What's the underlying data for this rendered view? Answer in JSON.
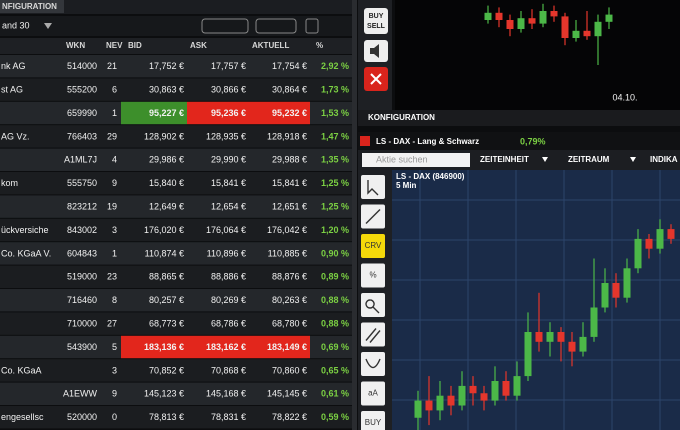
{
  "left_panel": {
    "tab": "NFIGURATION",
    "index": "and 30",
    "columns": [
      "WKN",
      "NEV",
      "BID",
      "ASK",
      "AKTUELL",
      "%"
    ],
    "rows": [
      {
        "name": "nk AG",
        "wkn": "514000",
        "nev": "21",
        "bid": "17,752 €",
        "ask": "17,757 €",
        "last": "17,754 €",
        "pct": "2,92 %"
      },
      {
        "name": "st AG",
        "wkn": "555200",
        "nev": "6",
        "bid": "30,863 €",
        "ask": "30,866 €",
        "last": "30,864 €",
        "pct": "1,73 %"
      },
      {
        "wkn": "659990",
        "nev": "1",
        "bid": "95,227 €",
        "ask": "95,236 €",
        "last": "95,232 €",
        "pct": "1,53 %",
        "highlight": {
          "bid": "#3d8f2b",
          "ask": "#e2261c",
          "last": "#e2261c"
        }
      },
      {
        "name": "AG Vz.",
        "wkn": "766403",
        "nev": "29",
        "bid": "128,902 €",
        "ask": "128,935 €",
        "last": "128,918 €",
        "pct": "1,47 %"
      },
      {
        "wkn": "A1ML7J",
        "nev": "4",
        "bid": "29,986 €",
        "ask": "29,990 €",
        "last": "29,988 €",
        "pct": "1,35 %"
      },
      {
        "name": "kom",
        "wkn": "555750",
        "nev": "9",
        "bid": "15,840 €",
        "ask": "15,841 €",
        "last": "15,841 €",
        "pct": "1,25 %"
      },
      {
        "wkn": "823212",
        "nev": "19",
        "bid": "12,649 €",
        "ask": "12,654 €",
        "last": "12,651 €",
        "pct": "1,25 %"
      },
      {
        "name": "ückversiche",
        "wkn": "843002",
        "nev": "3",
        "bid": "176,020 €",
        "ask": "176,064 €",
        "last": "176,042 €",
        "pct": "1,20 %"
      },
      {
        "name": "Co. KGaA V.",
        "wkn": "604843",
        "nev": "1",
        "bid": "110,874 €",
        "ask": "110,896 €",
        "last": "110,885 €",
        "pct": "0,90 %"
      },
      {
        "wkn": "519000",
        "nev": "23",
        "bid": "88,865 €",
        "ask": "88,886 €",
        "last": "88,876 €",
        "pct": "0,89 %"
      },
      {
        "wkn": "716460",
        "nev": "8",
        "bid": "80,257 €",
        "ask": "80,269 €",
        "last": "80,263 €",
        "pct": "0,88 %"
      },
      {
        "wkn": "710000",
        "nev": "27",
        "bid": "68,773 €",
        "ask": "68,786 €",
        "last": "68,780 €",
        "pct": "0,88 %"
      },
      {
        "wkn": "543900",
        "nev": "5",
        "bid": "183,136 €",
        "ask": "183,162 €",
        "last": "183,149 €",
        "pct": "0,69 %",
        "highlight": {
          "bid": "#e2261c",
          "ask": "#e2261c",
          "last": "#e2261c"
        }
      },
      {
        "name": "Co. KGaA",
        "nev": "3",
        "bid": "70,852 €",
        "ask": "70,868 €",
        "last": "70,860 €",
        "pct": "0,65 %"
      },
      {
        "wkn": "A1EWW",
        "nev": "9",
        "bid": "145,123 €",
        "ask": "145,168 €",
        "last": "145,145 €",
        "pct": "0,61 %"
      },
      {
        "name": "engesellsc",
        "wkn": "520000",
        "nev": "0",
        "bid": "78,813 €",
        "ask": "78,831 €",
        "last": "78,822 €",
        "pct": "0,59 %"
      }
    ]
  },
  "top_chart": {
    "buttons": [
      "BUY",
      "SELL"
    ],
    "date": "04.10.",
    "candles": [
      {
        "open": 80,
        "close": 88,
        "high": 96,
        "low": 76
      },
      {
        "open": 88,
        "close": 80,
        "high": 94,
        "low": 72
      },
      {
        "open": 80,
        "close": 70,
        "high": 86,
        "low": 62
      },
      {
        "open": 70,
        "close": 82,
        "high": 90,
        "low": 66
      },
      {
        "open": 82,
        "close": 76,
        "high": 92,
        "low": 70
      },
      {
        "open": 76,
        "close": 90,
        "high": 98,
        "low": 72
      },
      {
        "open": 90,
        "close": 84,
        "high": 96,
        "low": 78
      },
      {
        "open": 84,
        "close": 60,
        "high": 88,
        "low": 52
      },
      {
        "open": 60,
        "close": 68,
        "high": 80,
        "low": 56
      },
      {
        "open": 68,
        "close": 62,
        "high": 90,
        "low": 58
      },
      {
        "open": 62,
        "close": 78,
        "high": 86,
        "low": 30
      },
      {
        "open": 78,
        "close": 86,
        "high": 94,
        "low": 70
      }
    ]
  },
  "config_bar": "KONFIGURATION",
  "bottom_chart": {
    "title": "LS - DAX - Lang & Schwarz",
    "change": "0,79%",
    "search": "Aktie suchen",
    "menus": [
      "ZEITEINHEIT",
      "ZEITRAUM",
      "INDIKA"
    ],
    "instrument": "LS - DAX (846900)",
    "interval": "5 Min",
    "tools": [
      "CRV",
      "%",
      "aA",
      "BUY"
    ],
    "candles": [
      {
        "open": 5,
        "close": 12,
        "high": 16,
        "low": 0
      },
      {
        "open": 12,
        "close": 8,
        "high": 22,
        "low": 2
      },
      {
        "open": 8,
        "close": 14,
        "high": 20,
        "low": 4
      },
      {
        "open": 14,
        "close": 10,
        "high": 18,
        "low": 6
      },
      {
        "open": 10,
        "close": 18,
        "high": 24,
        "low": 8
      },
      {
        "open": 18,
        "close": 15,
        "high": 22,
        "low": 10
      },
      {
        "open": 15,
        "close": 12,
        "high": 18,
        "low": 8
      },
      {
        "open": 12,
        "close": 20,
        "high": 26,
        "low": 10
      },
      {
        "open": 20,
        "close": 14,
        "high": 24,
        "low": 12
      },
      {
        "open": 14,
        "close": 22,
        "high": 28,
        "low": 12
      },
      {
        "open": 22,
        "close": 40,
        "high": 48,
        "low": 20
      },
      {
        "open": 40,
        "close": 36,
        "high": 56,
        "low": 32
      },
      {
        "open": 36,
        "close": 40,
        "high": 44,
        "low": 30
      },
      {
        "open": 40,
        "close": 36,
        "high": 42,
        "low": 28
      },
      {
        "open": 36,
        "close": 32,
        "high": 40,
        "low": 26
      },
      {
        "open": 32,
        "close": 38,
        "high": 44,
        "low": 30
      },
      {
        "open": 38,
        "close": 50,
        "high": 70,
        "low": 36
      },
      {
        "open": 50,
        "close": 60,
        "high": 66,
        "low": 48
      },
      {
        "open": 60,
        "close": 54,
        "high": 64,
        "low": 50
      },
      {
        "open": 54,
        "close": 66,
        "high": 70,
        "low": 52
      },
      {
        "open": 66,
        "close": 78,
        "high": 82,
        "low": 64
      },
      {
        "open": 78,
        "close": 74,
        "high": 80,
        "low": 70
      },
      {
        "open": 74,
        "close": 82,
        "high": 86,
        "low": 72
      },
      {
        "open": 82,
        "close": 78,
        "high": 84,
        "low": 76
      }
    ]
  }
}
